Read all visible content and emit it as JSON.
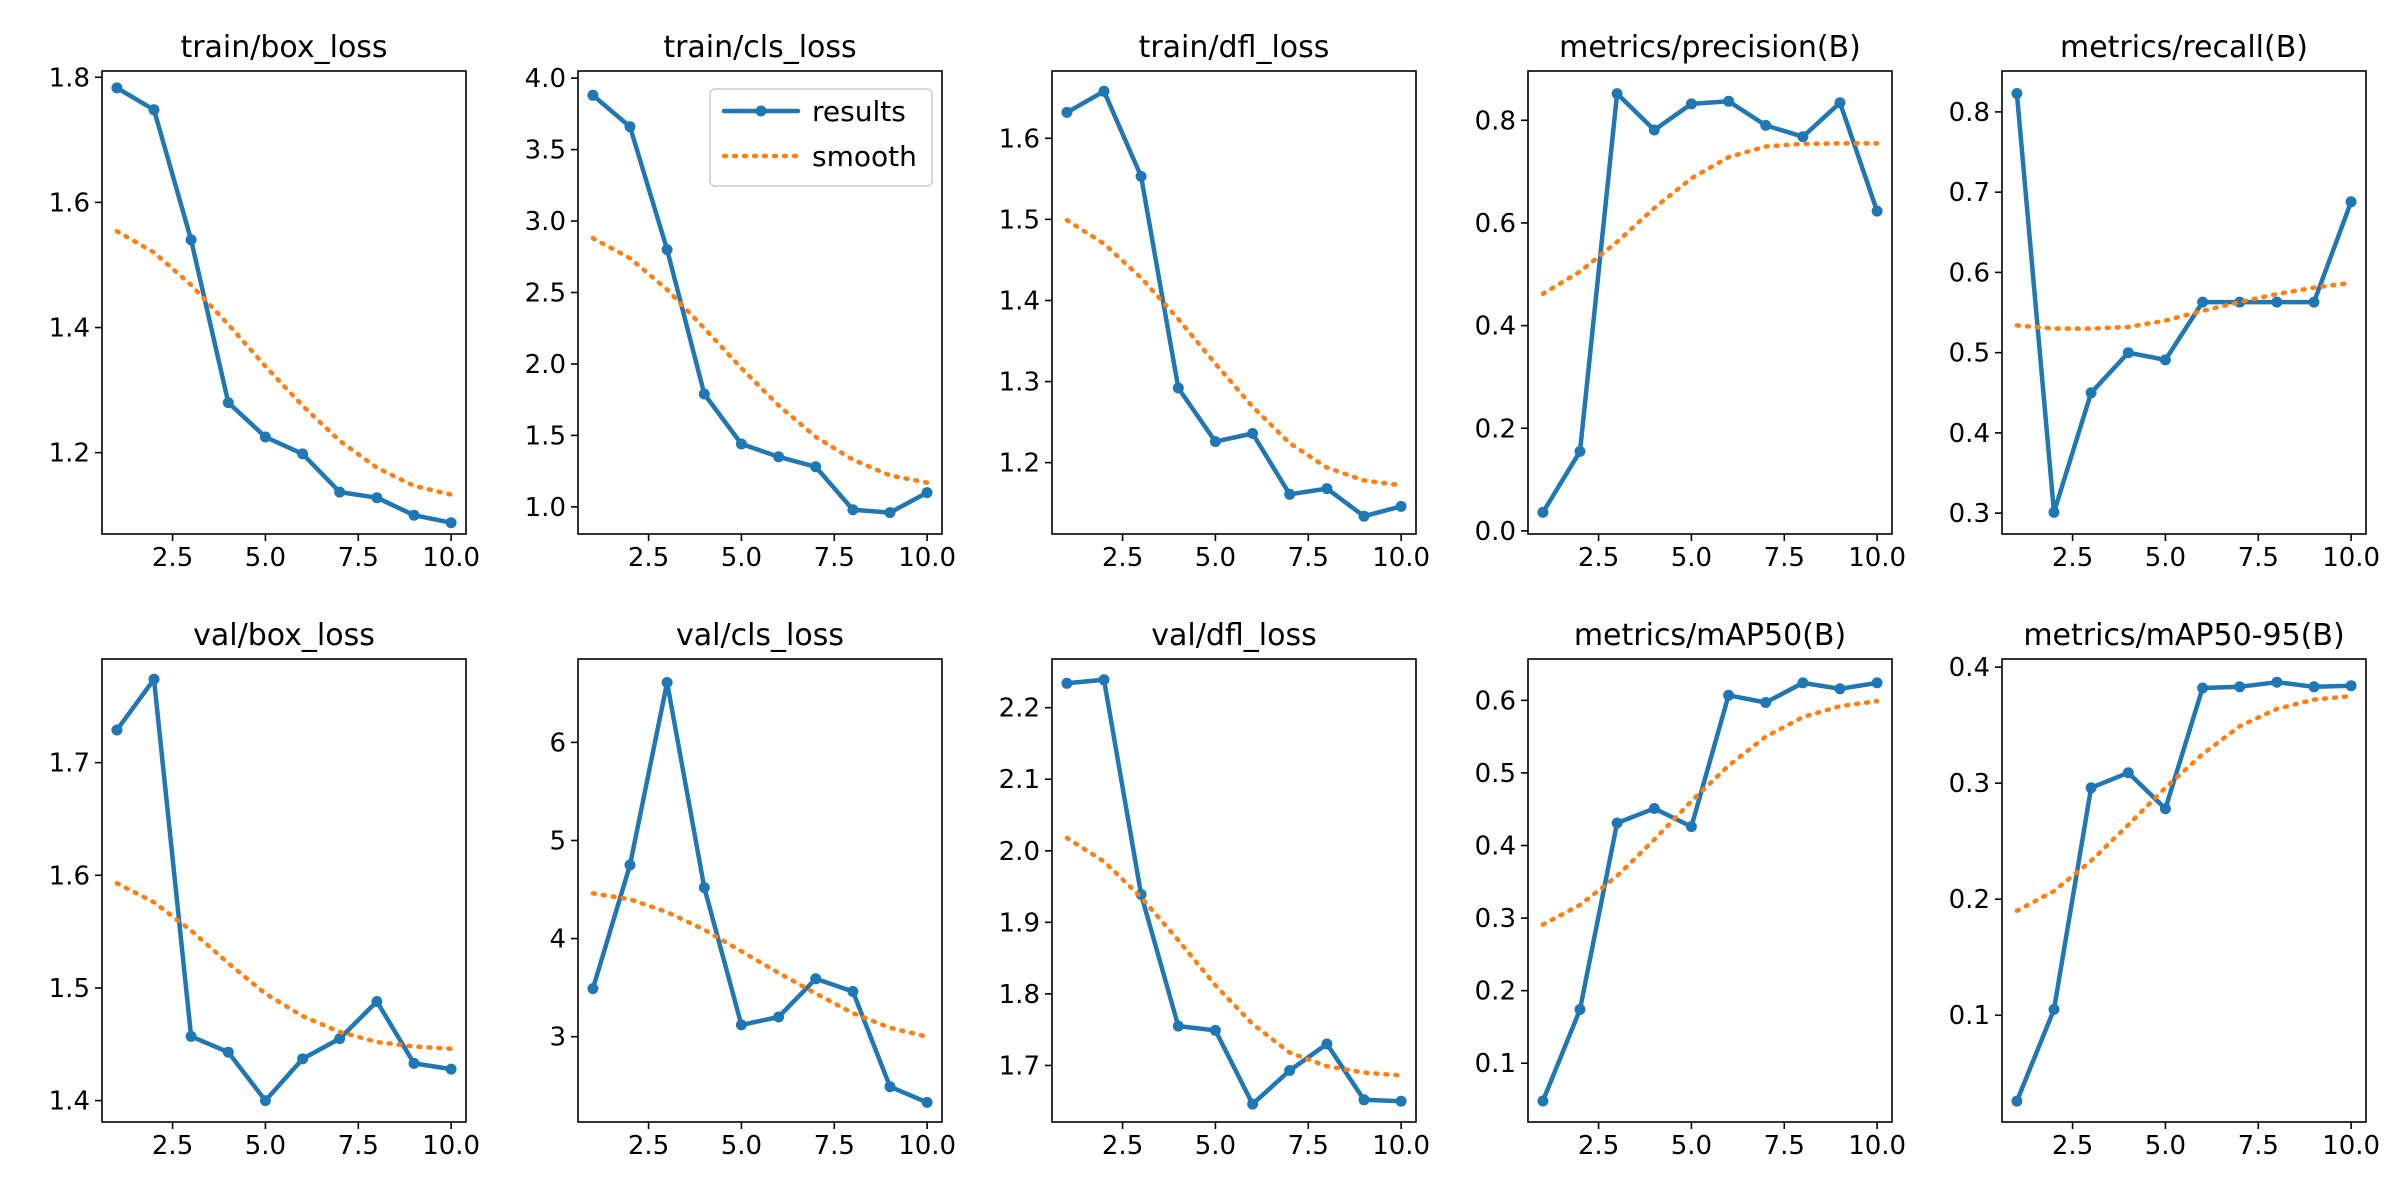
{
  "colors": {
    "results": "#1f77b4",
    "smooth": "#ff7f0e",
    "axes": "#000000",
    "background": "#ffffff"
  },
  "legend": {
    "panel": 1,
    "placement": "upper-right",
    "entries": [
      "results",
      "smooth"
    ]
  },
  "chart_data": [
    {
      "type": "line",
      "title": "train/box_loss",
      "xlabel": "",
      "ylabel": "",
      "xlim": [
        0.6,
        10.4
      ],
      "ylim": [
        1.07,
        1.81
      ],
      "xticks": [
        2.5,
        5.0,
        7.5,
        10.0
      ],
      "yticks": [
        1.2,
        1.4,
        1.6,
        1.8
      ],
      "xtick_labels": [
        "2.5",
        "5.0",
        "7.5",
        "10.0"
      ],
      "ytick_labels": [
        "1.2",
        "1.4",
        "1.6",
        "1.8"
      ],
      "x": [
        1,
        2,
        3,
        4,
        5,
        6,
        7,
        8,
        9,
        10
      ],
      "series": [
        {
          "name": "results",
          "style": "solid-markers",
          "values": [
            1.783,
            1.748,
            1.54,
            1.28,
            1.225,
            1.198,
            1.137,
            1.128,
            1.1,
            1.088
          ]
        },
        {
          "name": "smooth",
          "style": "dotted",
          "values": [
            1.554,
            1.52,
            1.468,
            1.405,
            1.338,
            1.275,
            1.219,
            1.176,
            1.147,
            1.133
          ]
        }
      ]
    },
    {
      "type": "line",
      "title": "train/cls_loss",
      "xlabel": "",
      "ylabel": "",
      "xlim": [
        0.6,
        10.4
      ],
      "ylim": [
        0.81,
        4.05
      ],
      "xticks": [
        2.5,
        5.0,
        7.5,
        10.0
      ],
      "yticks": [
        1.0,
        1.5,
        2.0,
        2.5,
        3.0,
        3.5,
        4.0
      ],
      "xtick_labels": [
        "2.5",
        "5.0",
        "7.5",
        "10.0"
      ],
      "ytick_labels": [
        "1.0",
        "1.5",
        "2.0",
        "2.5",
        "3.0",
        "3.5",
        "4.0"
      ],
      "x": [
        1,
        2,
        3,
        4,
        5,
        6,
        7,
        8,
        9,
        10
      ],
      "series": [
        {
          "name": "results",
          "style": "solid-markers",
          "values": [
            3.88,
            3.66,
            2.8,
            1.79,
            1.44,
            1.35,
            1.28,
            0.98,
            0.96,
            1.1
          ]
        },
        {
          "name": "smooth",
          "style": "dotted",
          "values": [
            2.88,
            2.74,
            2.52,
            2.25,
            1.97,
            1.71,
            1.49,
            1.33,
            1.22,
            1.17
          ]
        }
      ]
    },
    {
      "type": "line",
      "title": "train/dfl_loss",
      "xlabel": "",
      "ylabel": "",
      "xlim": [
        0.6,
        10.4
      ],
      "ylim": [
        1.112,
        1.683
      ],
      "xticks": [
        2.5,
        5.0,
        7.5,
        10.0
      ],
      "yticks": [
        1.2,
        1.3,
        1.4,
        1.5,
        1.6
      ],
      "xtick_labels": [
        "2.5",
        "5.0",
        "7.5",
        "10.0"
      ],
      "ytick_labels": [
        "1.2",
        "1.3",
        "1.4",
        "1.5",
        "1.6"
      ],
      "x": [
        1,
        2,
        3,
        4,
        5,
        6,
        7,
        8,
        9,
        10
      ],
      "series": [
        {
          "name": "results",
          "style": "solid-markers",
          "values": [
            1.632,
            1.658,
            1.553,
            1.292,
            1.226,
            1.236,
            1.161,
            1.168,
            1.134,
            1.146
          ]
        },
        {
          "name": "smooth",
          "style": "dotted",
          "values": [
            1.499,
            1.47,
            1.428,
            1.377,
            1.322,
            1.269,
            1.224,
            1.194,
            1.178,
            1.172
          ]
        }
      ]
    },
    {
      "type": "line",
      "title": "metrics/precision(B)",
      "xlabel": "",
      "ylabel": "",
      "xlim": [
        0.6,
        10.4
      ],
      "ylim": [
        -0.006,
        0.896
      ],
      "xticks": [
        2.5,
        5.0,
        7.5,
        10.0
      ],
      "yticks": [
        0.0,
        0.2,
        0.4,
        0.6,
        0.8
      ],
      "xtick_labels": [
        "2.5",
        "5.0",
        "7.5",
        "10.0"
      ],
      "ytick_labels": [
        "0.0",
        "0.2",
        "0.4",
        "0.6",
        "0.8"
      ],
      "x": [
        1,
        2,
        3,
        4,
        5,
        6,
        7,
        8,
        9,
        10
      ],
      "series": [
        {
          "name": "results",
          "style": "solid-markers",
          "values": [
            0.036,
            0.155,
            0.852,
            0.781,
            0.832,
            0.837,
            0.79,
            0.768,
            0.834,
            0.623
          ]
        },
        {
          "name": "smooth",
          "style": "dotted",
          "values": [
            0.462,
            0.505,
            0.563,
            0.629,
            0.687,
            0.728,
            0.749,
            0.754,
            0.755,
            0.755
          ]
        }
      ]
    },
    {
      "type": "line",
      "title": "metrics/recall(B)",
      "xlabel": "",
      "ylabel": "",
      "xlim": [
        0.6,
        10.4
      ],
      "ylim": [
        0.274,
        0.851
      ],
      "xticks": [
        2.5,
        5.0,
        7.5,
        10.0
      ],
      "yticks": [
        0.3,
        0.4,
        0.5,
        0.6,
        0.7,
        0.8
      ],
      "xtick_labels": [
        "2.5",
        "5.0",
        "7.5",
        "10.0"
      ],
      "ytick_labels": [
        "0.3",
        "0.4",
        "0.5",
        "0.6",
        "0.7",
        "0.8"
      ],
      "x": [
        1,
        2,
        3,
        4,
        5,
        6,
        7,
        8,
        9,
        10
      ],
      "series": [
        {
          "name": "results",
          "style": "solid-markers",
          "values": [
            0.823,
            0.301,
            0.45,
            0.5,
            0.491,
            0.563,
            0.563,
            0.563,
            0.563,
            0.688
          ]
        },
        {
          "name": "smooth",
          "style": "dotted",
          "values": [
            0.534,
            0.53,
            0.53,
            0.532,
            0.54,
            0.552,
            0.563,
            0.573,
            0.581,
            0.587
          ]
        }
      ]
    },
    {
      "type": "line",
      "title": "val/box_loss",
      "xlabel": "",
      "ylabel": "",
      "xlim": [
        0.6,
        10.4
      ],
      "ylim": [
        1.381,
        1.792
      ],
      "xticks": [
        2.5,
        5.0,
        7.5,
        10.0
      ],
      "yticks": [
        1.4,
        1.5,
        1.6,
        1.7
      ],
      "xtick_labels": [
        "2.5",
        "5.0",
        "7.5",
        "10.0"
      ],
      "ytick_labels": [
        "1.4",
        "1.5",
        "1.6",
        "1.7"
      ],
      "x": [
        1,
        2,
        3,
        4,
        5,
        6,
        7,
        8,
        9,
        10
      ],
      "series": [
        {
          "name": "results",
          "style": "solid-markers",
          "values": [
            1.729,
            1.774,
            1.457,
            1.443,
            1.4,
            1.437,
            1.455,
            1.488,
            1.433,
            1.428
          ]
        },
        {
          "name": "smooth",
          "style": "dotted",
          "values": [
            1.593,
            1.576,
            1.551,
            1.522,
            1.495,
            1.475,
            1.461,
            1.452,
            1.448,
            1.446
          ]
        }
      ]
    },
    {
      "type": "line",
      "title": "val/cls_loss",
      "xlabel": "",
      "ylabel": "",
      "xlim": [
        0.6,
        10.4
      ],
      "ylim": [
        2.13,
        6.85
      ],
      "xticks": [
        2.5,
        5.0,
        7.5,
        10.0
      ],
      "yticks": [
        3,
        4,
        5,
        6
      ],
      "xtick_labels": [
        "2.5",
        "5.0",
        "7.5",
        "10.0"
      ],
      "ytick_labels": [
        "3",
        "4",
        "5",
        "6"
      ],
      "x": [
        1,
        2,
        3,
        4,
        5,
        6,
        7,
        8,
        9,
        10
      ],
      "series": [
        {
          "name": "results",
          "style": "solid-markers",
          "values": [
            3.49,
            4.75,
            6.61,
            4.52,
            3.12,
            3.2,
            3.59,
            3.46,
            2.49,
            2.33
          ]
        },
        {
          "name": "smooth",
          "style": "dotted",
          "values": [
            4.46,
            4.4,
            4.27,
            4.09,
            3.87,
            3.65,
            3.44,
            3.24,
            3.09,
            3.0
          ]
        }
      ]
    },
    {
      "type": "line",
      "title": "val/dfl_loss",
      "xlabel": "",
      "ylabel": "",
      "xlim": [
        0.6,
        10.4
      ],
      "ylim": [
        1.621,
        2.268
      ],
      "xticks": [
        2.5,
        5.0,
        7.5,
        10.0
      ],
      "yticks": [
        1.7,
        1.8,
        1.9,
        2.0,
        2.1,
        2.2
      ],
      "xtick_labels": [
        "2.5",
        "5.0",
        "7.5",
        "10.0"
      ],
      "ytick_labels": [
        "1.7",
        "1.8",
        "1.9",
        "2.0",
        "2.1",
        "2.2"
      ],
      "x": [
        1,
        2,
        3,
        4,
        5,
        6,
        7,
        8,
        9,
        10
      ],
      "series": [
        {
          "name": "results",
          "style": "solid-markers",
          "values": [
            2.234,
            2.239,
            1.939,
            1.755,
            1.749,
            1.646,
            1.693,
            1.73,
            1.652,
            1.65
          ]
        },
        {
          "name": "smooth",
          "style": "dotted",
          "values": [
            2.018,
            1.985,
            1.935,
            1.875,
            1.812,
            1.758,
            1.718,
            1.699,
            1.69,
            1.686
          ]
        }
      ]
    },
    {
      "type": "line",
      "title": "metrics/mAP50(B)",
      "xlabel": "",
      "ylabel": "",
      "xlim": [
        0.6,
        10.4
      ],
      "ylim": [
        0.019,
        0.657
      ],
      "xticks": [
        2.5,
        5.0,
        7.5,
        10.0
      ],
      "yticks": [
        0.1,
        0.2,
        0.3,
        0.4,
        0.5,
        0.6
      ],
      "xtick_labels": [
        "2.5",
        "5.0",
        "7.5",
        "10.0"
      ],
      "ytick_labels": [
        "0.1",
        "0.2",
        "0.3",
        "0.4",
        "0.5",
        "0.6"
      ],
      "x": [
        1,
        2,
        3,
        4,
        5,
        6,
        7,
        8,
        9,
        10
      ],
      "series": [
        {
          "name": "results",
          "style": "solid-markers",
          "values": [
            0.048,
            0.174,
            0.431,
            0.451,
            0.426,
            0.607,
            0.597,
            0.624,
            0.616,
            0.624
          ]
        },
        {
          "name": "smooth",
          "style": "dotted",
          "values": [
            0.291,
            0.318,
            0.358,
            0.408,
            0.461,
            0.51,
            0.55,
            0.577,
            0.592,
            0.599
          ]
        }
      ]
    },
    {
      "type": "line",
      "title": "metrics/mAP50-95(B)",
      "xlabel": "",
      "ylabel": "",
      "xlim": [
        0.6,
        10.4
      ],
      "ylim": [
        0.008,
        0.407
      ],
      "xticks": [
        2.5,
        5.0,
        7.5,
        10.0
      ],
      "yticks": [
        0.1,
        0.2,
        0.3,
        0.4
      ],
      "xtick_labels": [
        "2.5",
        "5.0",
        "7.5",
        "10.0"
      ],
      "ytick_labels": [
        "0.1",
        "0.2",
        "0.3",
        "0.4"
      ],
      "x": [
        1,
        2,
        3,
        4,
        5,
        6,
        7,
        8,
        9,
        10
      ],
      "series": [
        {
          "name": "results",
          "style": "solid-markers",
          "values": [
            0.026,
            0.105,
            0.296,
            0.309,
            0.278,
            0.382,
            0.383,
            0.387,
            0.383,
            0.384
          ]
        },
        {
          "name": "smooth",
          "style": "dotted",
          "values": [
            0.19,
            0.207,
            0.233,
            0.264,
            0.296,
            0.325,
            0.349,
            0.364,
            0.372,
            0.375
          ]
        }
      ]
    }
  ]
}
